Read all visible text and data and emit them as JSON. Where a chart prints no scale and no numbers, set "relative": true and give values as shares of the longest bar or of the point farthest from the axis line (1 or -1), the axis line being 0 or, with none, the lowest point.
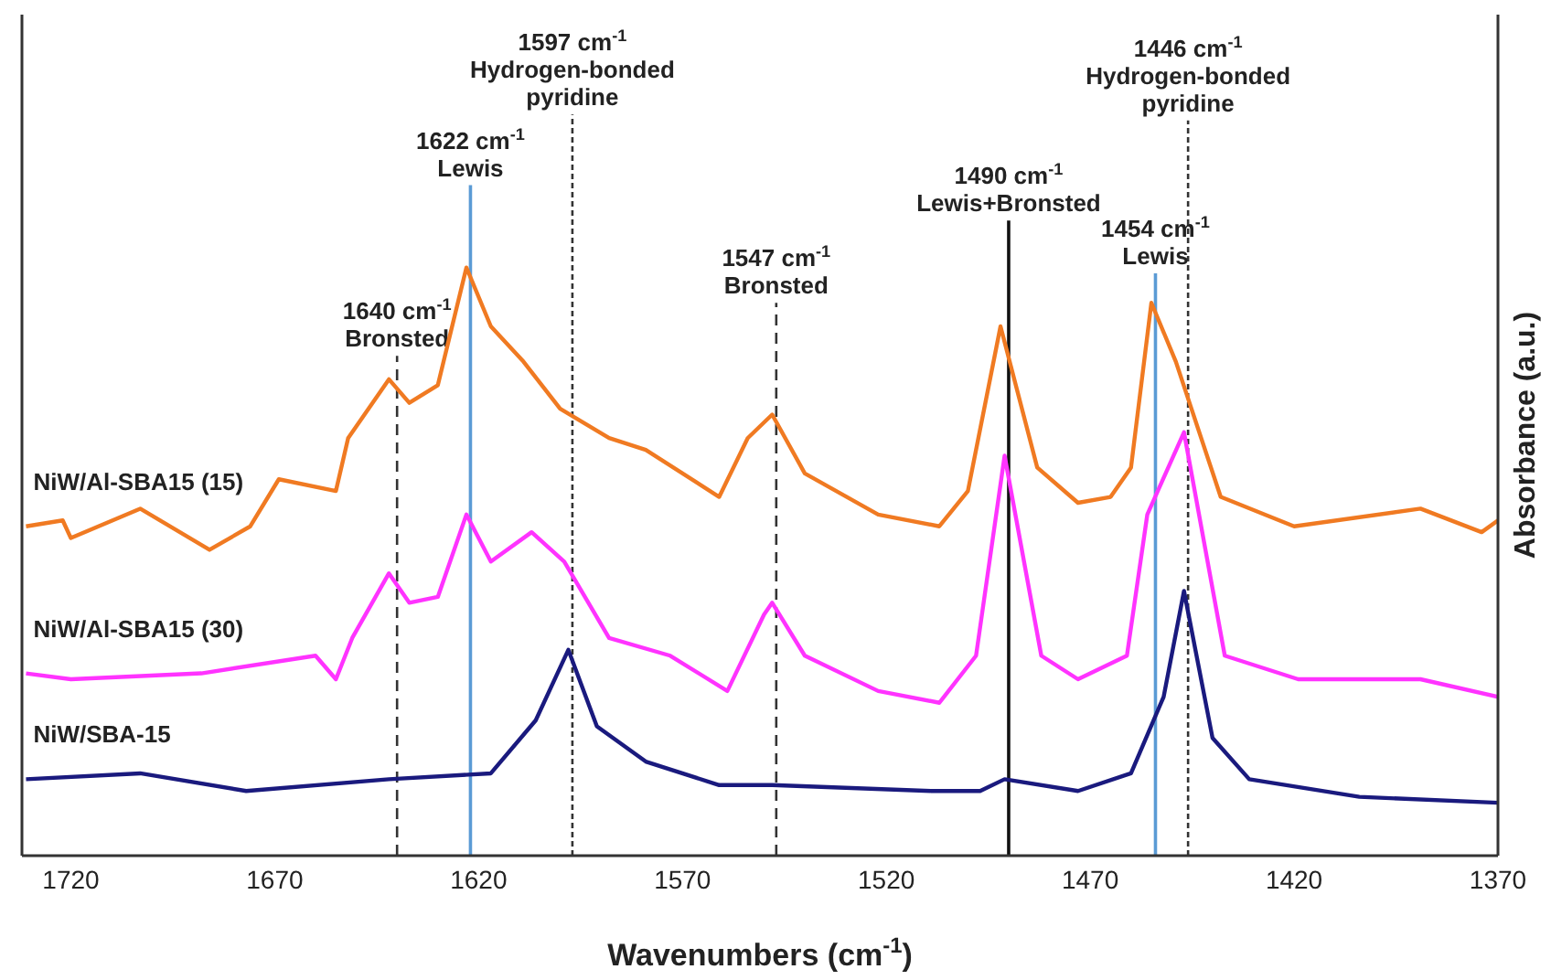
{
  "chart_data": {
    "type": "line",
    "relative": true,
    "xlabel": "Wavenumbers (cm$^{-1}$)",
    "ylabel": "Absorbance (a.u.)",
    "xlim": [
      1732,
      1370
    ],
    "xticks": [
      1720,
      1670,
      1620,
      1570,
      1520,
      1470,
      1420,
      1370
    ],
    "marker": "none",
    "legend": false,
    "series": [
      {
        "name": "NiW/Al-SBA15 (15)",
        "color": "#f07a22",
        "x": [
          1731,
          1722,
          1720,
          1703,
          1686,
          1676,
          1669,
          1655,
          1652,
          1642,
          1637,
          1630,
          1623,
          1617,
          1609,
          1600,
          1588,
          1579,
          1561,
          1554,
          1548,
          1540,
          1522,
          1507,
          1500,
          1492,
          1483,
          1473,
          1465,
          1460,
          1455,
          1449,
          1438,
          1420,
          1389,
          1374,
          1370
        ],
        "values": [
          0.56,
          0.57,
          0.54,
          0.59,
          0.52,
          0.56,
          0.64,
          0.62,
          0.71,
          0.81,
          0.77,
          0.8,
          1,
          0.9,
          0.84,
          0.76,
          0.71,
          0.69,
          0.61,
          0.71,
          0.75,
          0.65,
          0.58,
          0.56,
          0.62,
          0.9,
          0.66,
          0.6,
          0.61,
          0.66,
          0.94,
          0.84,
          0.61,
          0.56,
          0.59,
          0.55,
          0.57
        ]
      },
      {
        "name": "NiW/Al-SBA15 (30)",
        "color": "#ff33ff",
        "x": [
          1731,
          1720,
          1688,
          1660,
          1655,
          1651,
          1642,
          1637,
          1630,
          1623,
          1617,
          1607,
          1599,
          1588,
          1573,
          1559,
          1550,
          1548,
          1540,
          1522,
          1507,
          1498,
          1491,
          1482,
          1473,
          1461,
          1456,
          1447,
          1437,
          1419,
          1389,
          1370
        ],
        "values": [
          0.31,
          0.3,
          0.31,
          0.34,
          0.3,
          0.37,
          0.48,
          0.43,
          0.44,
          0.58,
          0.5,
          0.55,
          0.5,
          0.37,
          0.34,
          0.28,
          0.41,
          0.43,
          0.34,
          0.28,
          0.26,
          0.34,
          0.68,
          0.34,
          0.3,
          0.34,
          0.58,
          0.72,
          0.34,
          0.3,
          0.3,
          0.27
        ]
      },
      {
        "name": "NiW/SBA-15",
        "color": "#1a1a7e",
        "x": [
          1731,
          1703,
          1677,
          1642,
          1617,
          1606,
          1598,
          1591,
          1579,
          1561,
          1548,
          1509,
          1497,
          1491,
          1473,
          1460,
          1452,
          1447,
          1440,
          1431,
          1404,
          1370
        ],
        "values": [
          0.13,
          0.14,
          0.11,
          0.13,
          0.14,
          0.23,
          0.35,
          0.22,
          0.16,
          0.12,
          0.12,
          0.11,
          0.11,
          0.13,
          0.11,
          0.14,
          0.27,
          0.45,
          0.2,
          0.13,
          0.1,
          0.09
        ]
      }
    ],
    "ref_lines": [
      {
        "axis": "x",
        "value": 1640,
        "label": "1640 cm$^{-1}$\nBronsted",
        "color": "#333333",
        "line_style": "dashed"
      },
      {
        "axis": "x",
        "value": 1622,
        "label": "1622 cm$^{-1}$\nLewis",
        "color": "#5b9bd5",
        "line_style": "solid"
      },
      {
        "axis": "x",
        "value": 1597,
        "label": "1597 cm$^{-1}$\nHydrogen-bonded\npyridine",
        "color": "#333333",
        "line_style": "dotted"
      },
      {
        "axis": "x",
        "value": 1547,
        "label": "1547 cm$^{-1}$\nBronsted",
        "color": "#333333",
        "line_style": "dashed"
      },
      {
        "axis": "x",
        "value": 1490,
        "label": "1490 cm$^{-1}$\nLewis+Bronsted",
        "color": "#111111",
        "line_style": "solid"
      },
      {
        "axis": "x",
        "value": 1454,
        "label": "1454 cm$^{-1}$\nLewis",
        "color": "#5b9bd5",
        "line_style": "solid"
      },
      {
        "axis": "x",
        "value": 1446,
        "label": "1446 cm$^{-1}$\nHydrogen-bonded\npyridine",
        "color": "#333333",
        "line_style": "dotted"
      }
    ]
  }
}
